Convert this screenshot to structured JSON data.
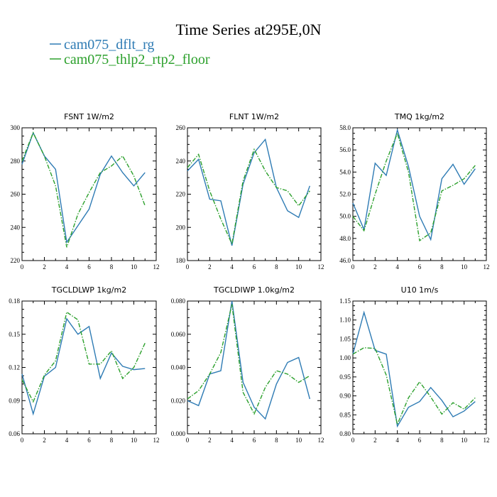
{
  "figure": {
    "title": "Time Series at295E,0N",
    "legend": [
      {
        "label": "cam075_dflt_rg",
        "color": "#2E7BB4",
        "style": "solid"
      },
      {
        "label": "cam075_thlp2_rtp2_floor",
        "color": "#2CA02C",
        "style": "dashed"
      }
    ]
  },
  "chart_data": [
    {
      "type": "line",
      "title": "FSNT   1W/m2",
      "x": [
        0,
        1,
        2,
        3,
        4,
        5,
        6,
        7,
        8,
        9,
        10,
        11
      ],
      "xlim": [
        0,
        12
      ],
      "xticks": [
        "0",
        "2",
        "4",
        "6",
        "8",
        "10",
        "12"
      ],
      "ylim": [
        220,
        300
      ],
      "yticks": [
        "220",
        "240",
        "260",
        "280",
        "300"
      ],
      "grid": false,
      "series": [
        {
          "name": "cam075_dflt_rg",
          "values": [
            278,
            297,
            283,
            275,
            231,
            241,
            251,
            272,
            283,
            273,
            265,
            273
          ]
        },
        {
          "name": "cam075_thlp2_rtp2_floor",
          "values": [
            280,
            297,
            283,
            265,
            228,
            248,
            261,
            273,
            277,
            283,
            271,
            253
          ]
        }
      ]
    },
    {
      "type": "line",
      "title": "FLNT   1W/m2",
      "x": [
        0,
        1,
        2,
        3,
        4,
        5,
        6,
        7,
        8,
        9,
        10,
        11
      ],
      "xlim": [
        0,
        12
      ],
      "xticks": [
        "0",
        "2",
        "4",
        "6",
        "8",
        "10",
        "12"
      ],
      "ylim": [
        180,
        260
      ],
      "yticks": [
        "180",
        "200",
        "220",
        "240",
        "260"
      ],
      "grid": false,
      "series": [
        {
          "name": "cam075_dflt_rg",
          "values": [
            234,
            241,
            217,
            216,
            189,
            226,
            245,
            253,
            224,
            210,
            206,
            225
          ]
        },
        {
          "name": "cam075_thlp2_rtp2_floor",
          "values": [
            236,
            244,
            222,
            205,
            190,
            228,
            247,
            234,
            224,
            222,
            213,
            222
          ]
        }
      ]
    },
    {
      "type": "line",
      "title": "TMQ   1kg/m2",
      "x": [
        0,
        1,
        2,
        3,
        4,
        5,
        6,
        7,
        8,
        9,
        10,
        11
      ],
      "xlim": [
        0,
        12
      ],
      "xticks": [
        "0",
        "2",
        "4",
        "6",
        "8",
        "10",
        "12"
      ],
      "ylim": [
        46.0,
        58.0
      ],
      "yticks": [
        "46.0",
        "48.0",
        "50.0",
        "52.0",
        "54.0",
        "56.0",
        "58.0"
      ],
      "grid": false,
      "series": [
        {
          "name": "cam075_dflt_rg",
          "values": [
            51.2,
            48.8,
            54.8,
            53.7,
            57.8,
            54.5,
            50.0,
            47.9,
            53.4,
            54.7,
            52.9,
            54.3
          ]
        },
        {
          "name": "cam075_thlp2_rtp2_floor",
          "values": [
            50.0,
            48.7,
            52.0,
            55.0,
            57.5,
            54.0,
            47.8,
            48.5,
            52.3,
            52.8,
            53.4,
            54.6
          ]
        }
      ]
    },
    {
      "type": "line",
      "title": "TGCLDLWP   1kg/m2",
      "x": [
        0,
        1,
        2,
        3,
        4,
        5,
        6,
        7,
        8,
        9,
        10,
        11
      ],
      "xlim": [
        0,
        12
      ],
      "xticks": [
        "0",
        "2",
        "4",
        "6",
        "8",
        "10",
        "12"
      ],
      "ylim": [
        0.06,
        0.18
      ],
      "yticks": [
        "0.06",
        "0.09",
        "0.12",
        "0.15",
        "0.18"
      ],
      "grid": false,
      "series": [
        {
          "name": "cam075_dflt_rg",
          "values": [
            0.114,
            0.078,
            0.112,
            0.12,
            0.164,
            0.15,
            0.157,
            0.11,
            0.133,
            0.121,
            0.118,
            0.119
          ]
        },
        {
          "name": "cam075_thlp2_rtp2_floor",
          "values": [
            0.109,
            0.089,
            0.113,
            0.126,
            0.17,
            0.163,
            0.123,
            0.123,
            0.135,
            0.11,
            0.12,
            0.142
          ]
        }
      ]
    },
    {
      "type": "line",
      "title": "TGCLDIWP   1.0kg/m2",
      "x": [
        0,
        1,
        2,
        3,
        4,
        5,
        6,
        7,
        8,
        9,
        10,
        11
      ],
      "xlim": [
        0,
        12
      ],
      "xticks": [
        "0",
        "2",
        "4",
        "6",
        "8",
        "10",
        "12"
      ],
      "ylim": [
        0.0,
        0.08
      ],
      "yticks": [
        "0.000",
        "0.020",
        "0.040",
        "0.060",
        "0.080"
      ],
      "grid": false,
      "series": [
        {
          "name": "cam075_dflt_rg",
          "values": [
            0.02,
            0.017,
            0.036,
            0.038,
            0.08,
            0.031,
            0.016,
            0.009,
            0.03,
            0.043,
            0.046,
            0.021
          ]
        },
        {
          "name": "cam075_thlp2_rtp2_floor",
          "values": [
            0.021,
            0.026,
            0.036,
            0.049,
            0.078,
            0.025,
            0.012,
            0.028,
            0.038,
            0.036,
            0.031,
            0.035
          ]
        }
      ]
    },
    {
      "type": "line",
      "title": "U10   1m/s",
      "x": [
        0,
        1,
        2,
        3,
        4,
        5,
        6,
        7,
        8,
        9,
        10,
        11
      ],
      "xlim": [
        0,
        12
      ],
      "xticks": [
        "0",
        "2",
        "4",
        "6",
        "8",
        "10",
        "12"
      ],
      "ylim": [
        0.8,
        1.15
      ],
      "yticks": [
        "0.80",
        "0.85",
        "0.90",
        "0.95",
        "1.00",
        "1.05",
        "1.10",
        "1.15"
      ],
      "grid": false,
      "series": [
        {
          "name": "cam075_dflt_rg",
          "values": [
            1.01,
            1.12,
            1.02,
            1.01,
            0.82,
            0.87,
            0.885,
            0.922,
            0.888,
            0.845,
            0.86,
            0.885
          ]
        },
        {
          "name": "cam075_thlp2_rtp2_floor",
          "values": [
            1.01,
            1.027,
            1.025,
            0.955,
            0.825,
            0.895,
            0.937,
            0.897,
            0.852,
            0.882,
            0.865,
            0.895
          ]
        }
      ]
    }
  ]
}
